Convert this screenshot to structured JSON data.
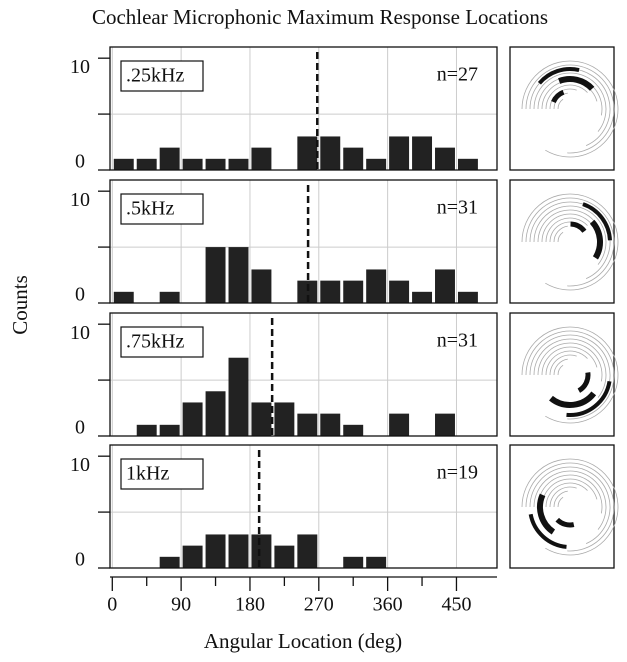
{
  "title": "Cochlear Microphonic Maximum Response Locations",
  "xlabel": "Angular Location (deg)",
  "ylabel": "Counts",
  "xlim": [
    -3,
    503
  ],
  "xticks": [
    0,
    90,
    180,
    270,
    360,
    450
  ],
  "xminor_ticks": [
    45,
    135,
    225,
    315,
    405
  ],
  "chart_data": [
    {
      "type": "histogram",
      "label": ".25kHz",
      "n_label": "n=27",
      "color": "#222222",
      "bins": [
        0,
        30,
        60,
        90,
        120,
        150,
        180,
        210,
        240,
        270,
        300,
        330,
        360,
        390,
        420,
        450,
        480
      ],
      "values": [
        1,
        1,
        2,
        1,
        1,
        1,
        2,
        0,
        3,
        3,
        2,
        1,
        3,
        3,
        2,
        1
      ],
      "vline": 268,
      "ylim": [
        0,
        11
      ],
      "yticks": [
        0,
        10
      ],
      "yminor_ticks": [
        5
      ],
      "grid": true
    },
    {
      "type": "histogram",
      "label": ".5kHz",
      "n_label": "n=31",
      "color": "#222222",
      "bins": [
        0,
        30,
        60,
        90,
        120,
        150,
        180,
        210,
        240,
        270,
        300,
        330,
        360,
        390,
        420,
        450,
        480
      ],
      "values": [
        1,
        0,
        1,
        0,
        5,
        5,
        3,
        0,
        2,
        2,
        2,
        3,
        2,
        1,
        3,
        1
      ],
      "vline": 256,
      "ylim": [
        0,
        11
      ],
      "yticks": [
        0,
        10
      ],
      "yminor_ticks": [
        5
      ],
      "grid": true
    },
    {
      "type": "histogram",
      "label": ".75kHz",
      "n_label": "n=31",
      "color": "#222222",
      "bins": [
        0,
        30,
        60,
        90,
        120,
        150,
        180,
        210,
        240,
        270,
        300,
        330,
        360,
        390,
        420,
        450,
        480
      ],
      "values": [
        0,
        1,
        1,
        3,
        4,
        7,
        3,
        3,
        2,
        2,
        1,
        0,
        2,
        0,
        2,
        0
      ],
      "vline": 209,
      "ylim": [
        0,
        11
      ],
      "yticks": [
        0,
        10
      ],
      "yminor_ticks": [
        5
      ],
      "grid": true
    },
    {
      "type": "histogram",
      "label": "1kHz",
      "n_label": "n=19",
      "color": "#222222",
      "bins": [
        0,
        30,
        60,
        90,
        120,
        150,
        180,
        210,
        240,
        270,
        300,
        330,
        360,
        390,
        420,
        450,
        480
      ],
      "values": [
        0,
        0,
        1,
        2,
        3,
        3,
        3,
        2,
        3,
        0,
        1,
        1,
        0,
        0,
        0,
        0
      ],
      "vline": 192,
      "ylim": [
        0,
        11
      ],
      "yticks": [
        0,
        10
      ],
      "yminor_ticks": [
        5
      ],
      "grid": true
    }
  ]
}
